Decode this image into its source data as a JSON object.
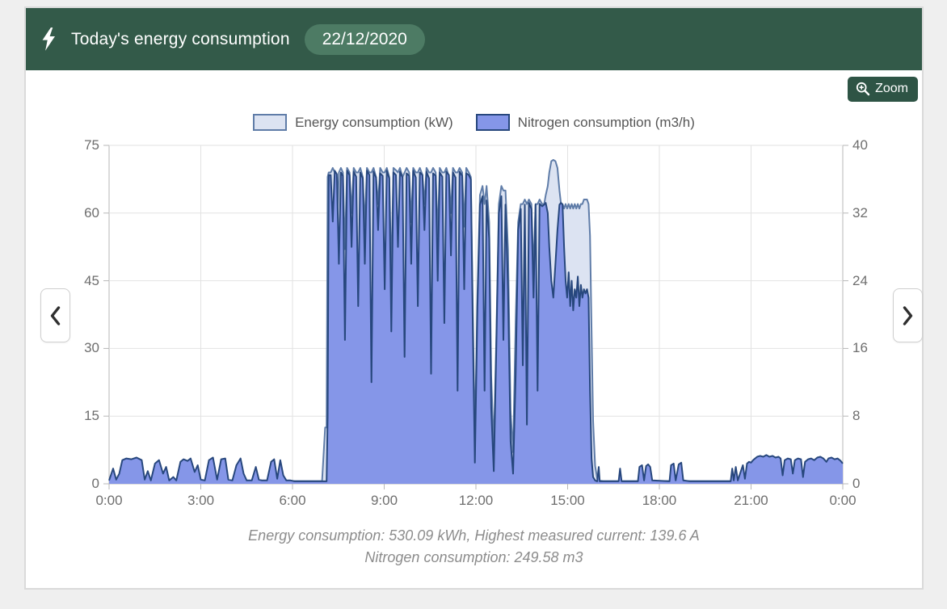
{
  "header": {
    "title": "Today's energy consumption",
    "date_badge": "22/12/2020"
  },
  "toolbar": {
    "zoom_label": "Zoom"
  },
  "icons": {
    "header": "lightning-bolt-icon",
    "zoom_button": "magnifier-plus-icon",
    "prev": "chevron-left-icon",
    "next": "chevron-right-icon"
  },
  "colors": {
    "header_bg": "#335A49",
    "badge_bg": "#4D7B64",
    "zoom_button_bg": "#2E5445",
    "page_bg": "#efefef",
    "grid": "#e2e2e2",
    "axis": "#b7b7b7",
    "tick_text": "#6E6E6E"
  },
  "caption": {
    "line1": "Energy consumption: 530.09 kWh, Highest measured current: 139.6 A",
    "line2": "Nitrogen consumption: 249.58 m3"
  },
  "chart_data": {
    "type": "area",
    "title": "Today's energy consumption",
    "legend_position": "top",
    "grid": true,
    "axes": {
      "x": {
        "hours": [
          0,
          3,
          6,
          9,
          12,
          15,
          18,
          21,
          24
        ],
        "tick_labels": [
          "0:00",
          "3:00",
          "6:00",
          "9:00",
          "12:00",
          "15:00",
          "18:00",
          "21:00",
          "0:00"
        ]
      },
      "left": {
        "min": 0,
        "max": 75,
        "ticks": [
          0,
          15,
          30,
          45,
          60,
          75
        ]
      },
      "right": {
        "min": 0,
        "max": 40,
        "ticks": [
          0,
          8,
          16,
          24,
          32,
          40
        ]
      }
    },
    "series": [
      {
        "name": "Energy consumption (kW)",
        "axis": "left",
        "unit": "kW",
        "fill": "#DCE3F2",
        "stroke": "#5F7CA8",
        "stroke_width": 2
      },
      {
        "name": "Nitrogen consumption (m3/h)",
        "axis": "right",
        "unit": "m3/h",
        "fill": "#8596E8",
        "stroke": "#27477D",
        "stroke_width": 2
      }
    ],
    "sample_format": [
      "minutes_from_midnight",
      "energy_kW",
      "nitrogen_m3h"
    ],
    "samples": [
      [
        0,
        0.6,
        0.4
      ],
      [
        8,
        0.6,
        1.8
      ],
      [
        14,
        0.6,
        0.5
      ],
      [
        20,
        0.6,
        1.2
      ],
      [
        26,
        0.6,
        2.8
      ],
      [
        34,
        0.6,
        3.0
      ],
      [
        44,
        0.6,
        2.9
      ],
      [
        54,
        0.6,
        3.1
      ],
      [
        64,
        0.6,
        2.8
      ],
      [
        70,
        0.6,
        0.5
      ],
      [
        76,
        0.6,
        1.5
      ],
      [
        82,
        0.6,
        0.4
      ],
      [
        90,
        0.6,
        2.4
      ],
      [
        98,
        0.6,
        2.8
      ],
      [
        106,
        0.6,
        1.2
      ],
      [
        112,
        0.6,
        2.0
      ],
      [
        118,
        0.6,
        0.4
      ],
      [
        126,
        0.6,
        0.8
      ],
      [
        132,
        0.6,
        0.4
      ],
      [
        140,
        0.6,
        2.6
      ],
      [
        146,
        0.6,
        2.9
      ],
      [
        154,
        0.6,
        2.7
      ],
      [
        160,
        0.6,
        3.0
      ],
      [
        168,
        0.6,
        1.4
      ],
      [
        174,
        0.6,
        2.2
      ],
      [
        180,
        0.6,
        0.5
      ],
      [
        188,
        0.6,
        0.4
      ],
      [
        196,
        0.6,
        2.8
      ],
      [
        204,
        0.6,
        3.1
      ],
      [
        212,
        0.6,
        0.5
      ],
      [
        220,
        0.6,
        2.9
      ],
      [
        228,
        0.6,
        3.0
      ],
      [
        234,
        0.6,
        0.5
      ],
      [
        242,
        0.6,
        0.4
      ],
      [
        250,
        0.6,
        2.2
      ],
      [
        258,
        0.6,
        3.0
      ],
      [
        264,
        0.6,
        1.2
      ],
      [
        270,
        0.6,
        0.4
      ],
      [
        280,
        0.6,
        0.4
      ],
      [
        288,
        0.6,
        2.0
      ],
      [
        294,
        0.6,
        0.5
      ],
      [
        300,
        0.6,
        0.4
      ],
      [
        310,
        0.6,
        0.4
      ],
      [
        318,
        0.6,
        2.6
      ],
      [
        324,
        0.6,
        2.9
      ],
      [
        330,
        0.6,
        0.6
      ],
      [
        336,
        0.6,
        2.8
      ],
      [
        342,
        0.6,
        1.0
      ],
      [
        348,
        0.6,
        0.4
      ],
      [
        356,
        0.6,
        0.4
      ],
      [
        364,
        0.6,
        0.3
      ],
      [
        372,
        0.6,
        0.3
      ],
      [
        380,
        0.6,
        0.3
      ],
      [
        390,
        0.6,
        0.3
      ],
      [
        400,
        0.6,
        0.3
      ],
      [
        410,
        0.6,
        0.3
      ],
      [
        418,
        0.6,
        0.3
      ],
      [
        424,
        12.5,
        0.3
      ],
      [
        427,
        12.5,
        0.3
      ],
      [
        429,
        68,
        8
      ],
      [
        431,
        69,
        36.5
      ],
      [
        435,
        69,
        36.5
      ],
      [
        439,
        70,
        31
      ],
      [
        443,
        69,
        37
      ],
      [
        447,
        55,
        36.6
      ],
      [
        451,
        69,
        26
      ],
      [
        455,
        70,
        36.8
      ],
      [
        459,
        69,
        36.4
      ],
      [
        463,
        52,
        17
      ],
      [
        467,
        70,
        37
      ],
      [
        472,
        69,
        36.5
      ],
      [
        476,
        60,
        28
      ],
      [
        480,
        70,
        36.9
      ],
      [
        485,
        69,
        36.3
      ],
      [
        489,
        69,
        21
      ],
      [
        493,
        70,
        36.8
      ],
      [
        498,
        68,
        36.1
      ],
      [
        502,
        57,
        26
      ],
      [
        506,
        70,
        37
      ],
      [
        511,
        69,
        36.5
      ],
      [
        515,
        69,
        12
      ],
      [
        519,
        70,
        36.9
      ],
      [
        524,
        68,
        36.2
      ],
      [
        528,
        62,
        30
      ],
      [
        532,
        70,
        36.7
      ],
      [
        537,
        69,
        36.4
      ],
      [
        541,
        69,
        23
      ],
      [
        545,
        70,
        37
      ],
      [
        550,
        68,
        36.1
      ],
      [
        554,
        46,
        18
      ],
      [
        558,
        70,
        36.8
      ],
      [
        563,
        69.5,
        36.5
      ],
      [
        567,
        69,
        28
      ],
      [
        571,
        70,
        36.9
      ],
      [
        576,
        68,
        36.2
      ],
      [
        580,
        69,
        15
      ],
      [
        584,
        70,
        36.7
      ],
      [
        589,
        69,
        36.4
      ],
      [
        593,
        58,
        26
      ],
      [
        597,
        70,
        37
      ],
      [
        602,
        69,
        36.2
      ],
      [
        606,
        69,
        21
      ],
      [
        610,
        70,
        36.8
      ],
      [
        615,
        68.5,
        36.5
      ],
      [
        619,
        62,
        30
      ],
      [
        623,
        70,
        36.9
      ],
      [
        628,
        69,
        36.1
      ],
      [
        632,
        69,
        13
      ],
      [
        636,
        70,
        36.7
      ],
      [
        641,
        69,
        36.4
      ],
      [
        645,
        55,
        24
      ],
      [
        649,
        70,
        36.8
      ],
      [
        654,
        69,
        36.3
      ],
      [
        658,
        69,
        19
      ],
      [
        662,
        70,
        36.9
      ],
      [
        667,
        68,
        36.5
      ],
      [
        671,
        60,
        27
      ],
      [
        675,
        70,
        36.8
      ],
      [
        680,
        69,
        36.2
      ],
      [
        684,
        69,
        11
      ],
      [
        688,
        70,
        36.9
      ],
      [
        693,
        69,
        36.4
      ],
      [
        697,
        57,
        23
      ],
      [
        701,
        70,
        36.7
      ],
      [
        706,
        69,
        36.5
      ],
      [
        710,
        68,
        36
      ],
      [
        714,
        38,
        18
      ],
      [
        718,
        10,
        2.5
      ],
      [
        723,
        42,
        21
      ],
      [
        728,
        64,
        33
      ],
      [
        733,
        66,
        34
      ],
      [
        737,
        62,
        11
      ],
      [
        741,
        66,
        33.5
      ],
      [
        746,
        58,
        29
      ],
      [
        750,
        24,
        9
      ],
      [
        755,
        8,
        1.5
      ],
      [
        760,
        32,
        16
      ],
      [
        765,
        62,
        32
      ],
      [
        770,
        66,
        34
      ],
      [
        774,
        65,
        17
      ],
      [
        778,
        65,
        33
      ],
      [
        783,
        52,
        23
      ],
      [
        788,
        16,
        5
      ],
      [
        793,
        7,
        1.2
      ],
      [
        798,
        36,
        13
      ],
      [
        803,
        58,
        30
      ],
      [
        808,
        62,
        32.5
      ],
      [
        812,
        62,
        14
      ],
      [
        816,
        63,
        33
      ],
      [
        820,
        62,
        7
      ],
      [
        824,
        63,
        33.2
      ],
      [
        829,
        62,
        32.5
      ],
      [
        833,
        47,
        22
      ],
      [
        837,
        62,
        33
      ],
      [
        841,
        62,
        11
      ],
      [
        845,
        63,
        33.1
      ],
      [
        850,
        62,
        32.8
      ],
      [
        854,
        62,
        33
      ],
      [
        857,
        64,
        33.2
      ],
      [
        861,
        66,
        32
      ],
      [
        864,
        69,
        28
      ],
      [
        868,
        71.5,
        24
      ],
      [
        872,
        71.8,
        22
      ],
      [
        876,
        71.5,
        26
      ],
      [
        880,
        70,
        30
      ],
      [
        884,
        65,
        33
      ],
      [
        887,
        62,
        33.2
      ],
      [
        890,
        62,
        33
      ],
      [
        893,
        61,
        28
      ],
      [
        896,
        62,
        24
      ],
      [
        899,
        61,
        22
      ],
      [
        902,
        62,
        25
      ],
      [
        905,
        61,
        21
      ],
      [
        908,
        62,
        24
      ],
      [
        911,
        61,
        20.5
      ],
      [
        914,
        62,
        23
      ],
      [
        917,
        61,
        22
      ],
      [
        920,
        62,
        24.5
      ],
      [
        923,
        61,
        21
      ],
      [
        926,
        62,
        23.5
      ],
      [
        929,
        62,
        22
      ],
      [
        932,
        63,
        23
      ],
      [
        935,
        63,
        22.5
      ],
      [
        938,
        63,
        23
      ],
      [
        941,
        62,
        22
      ],
      [
        944,
        55,
        11
      ],
      [
        947,
        34,
        3
      ],
      [
        950,
        14,
        0.8
      ],
      [
        954,
        4,
        0.4
      ],
      [
        958,
        1.2,
        0.3
      ],
      [
        961,
        0.8,
        2.0
      ],
      [
        963,
        0.7,
        0.3
      ],
      [
        970,
        0.6,
        0.3
      ],
      [
        980,
        0.6,
        0.3
      ],
      [
        990,
        0.6,
        0.3
      ],
      [
        1000,
        0.6,
        0.3
      ],
      [
        1003,
        0.6,
        1.8
      ],
      [
        1006,
        0.6,
        0.3
      ],
      [
        1038,
        0.6,
        0.3
      ],
      [
        1041,
        0.6,
        2.0
      ],
      [
        1046,
        0.6,
        2.2
      ],
      [
        1050,
        0.6,
        0.4
      ],
      [
        1054,
        0.6,
        2.1
      ],
      [
        1058,
        0.6,
        2.3
      ],
      [
        1062,
        0.6,
        2.0
      ],
      [
        1066,
        0.6,
        0.4
      ],
      [
        1100,
        0.6,
        0.3
      ],
      [
        1103,
        0.6,
        2.2
      ],
      [
        1108,
        0.6,
        2.4
      ],
      [
        1112,
        0.6,
        0.4
      ],
      [
        1118,
        0.6,
        2.3
      ],
      [
        1123,
        0.6,
        2.5
      ],
      [
        1127,
        0.6,
        0.4
      ],
      [
        1140,
        0.6,
        0.3
      ],
      [
        1160,
        0.6,
        0.3
      ],
      [
        1180,
        0.6,
        0.3
      ],
      [
        1200,
        0.6,
        0.3
      ],
      [
        1220,
        0.6,
        0.3
      ],
      [
        1223,
        0.6,
        1.8
      ],
      [
        1226,
        0.6,
        0.4
      ],
      [
        1230,
        0.6,
        2.0
      ],
      [
        1234,
        0.6,
        0.4
      ],
      [
        1240,
        0.6,
        1.5
      ],
      [
        1244,
        0.6,
        2.2
      ],
      [
        1248,
        0.6,
        0.6
      ],
      [
        1252,
        0.6,
        2.4
      ],
      [
        1256,
        0.6,
        2.6
      ],
      [
        1260,
        0.6,
        2.5
      ],
      [
        1264,
        0.6,
        2.8
      ],
      [
        1268,
        0.6,
        3.0
      ],
      [
        1272,
        0.6,
        3.2
      ],
      [
        1278,
        0.6,
        3.3
      ],
      [
        1284,
        0.6,
        3.2
      ],
      [
        1290,
        0.6,
        3.4
      ],
      [
        1296,
        0.6,
        3.2
      ],
      [
        1302,
        0.6,
        3.3
      ],
      [
        1308,
        0.6,
        3.1
      ],
      [
        1314,
        0.6,
        3.2
      ],
      [
        1318,
        0.6,
        3.0
      ],
      [
        1322,
        0.6,
        1.0
      ],
      [
        1326,
        0.6,
        2.8
      ],
      [
        1332,
        0.6,
        3.0
      ],
      [
        1338,
        0.6,
        2.9
      ],
      [
        1342,
        0.6,
        1.2
      ],
      [
        1346,
        0.6,
        2.8
      ],
      [
        1352,
        0.6,
        3.0
      ],
      [
        1358,
        0.6,
        2.9
      ],
      [
        1362,
        0.6,
        0.8
      ],
      [
        1366,
        0.6,
        2.6
      ],
      [
        1372,
        0.6,
        2.9
      ],
      [
        1378,
        0.6,
        3.0
      ],
      [
        1384,
        0.6,
        2.8
      ],
      [
        1390,
        0.6,
        3.1
      ],
      [
        1396,
        0.6,
        3.2
      ],
      [
        1402,
        0.6,
        3.0
      ],
      [
        1408,
        0.6,
        2.6
      ],
      [
        1412,
        0.6,
        3.0
      ],
      [
        1418,
        0.6,
        3.1
      ],
      [
        1424,
        0.6,
        2.9
      ],
      [
        1430,
        0.6,
        3.0
      ],
      [
        1436,
        0.6,
        2.7
      ],
      [
        1440,
        0.6,
        2.4
      ]
    ]
  }
}
